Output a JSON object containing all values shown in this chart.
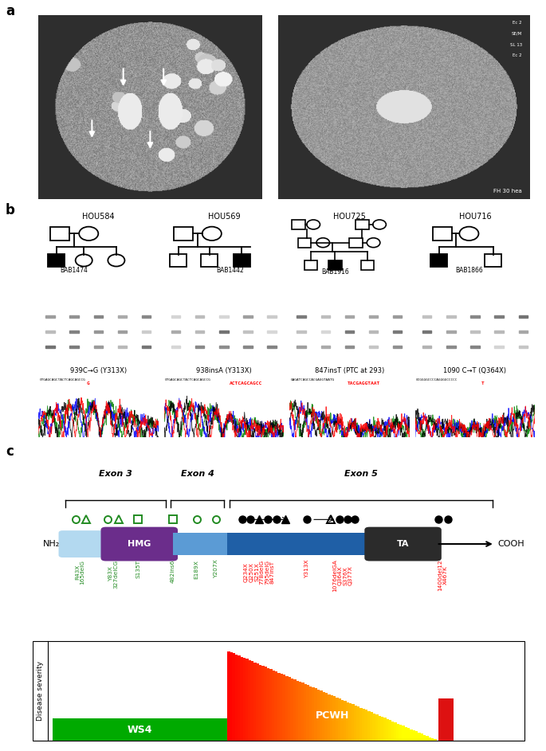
{
  "panel_a_label": "a",
  "panel_b_label": "b",
  "panel_c_label": "c",
  "hou_labels": [
    "HOU584",
    "HOU569",
    "HOU725",
    "HOU716"
  ],
  "bab_labels": [
    "BAB1474",
    "BAB1442",
    "BAB1916",
    "BAB1866"
  ],
  "mutation_labels": [
    "939C→G (Y313X)",
    "938insA (Y313X)",
    "847insT (PTC at 293)",
    "1090 C→T (Q364X)"
  ],
  "seq_top_labels": [
    "GTGAGCAGCTACTCAGCAGCCG",
    "GTGAGCAGCTACTCAGCAGCCG",
    "GAGATCAGCCACGAGGTAATG",
    "GCGGGGCCCCAGGGGCCCCC"
  ],
  "seq_insert_labels": [
    "G",
    "ACTCAGCAGCC",
    "TACGAGGTAAT",
    "T"
  ],
  "exon3_label": "Exon 3",
  "exon4_label": "Exon 4",
  "exon5_label": "Exon 5",
  "nh2_label": "NH₂",
  "cooh_label": "COOH",
  "hmg_label": "HMG",
  "ta_label": "TA",
  "ws4_label": "WS4",
  "pcwh_label": "PCWH",
  "disease_severity_label": "Disease severity",
  "bg_color": "#ffffff"
}
